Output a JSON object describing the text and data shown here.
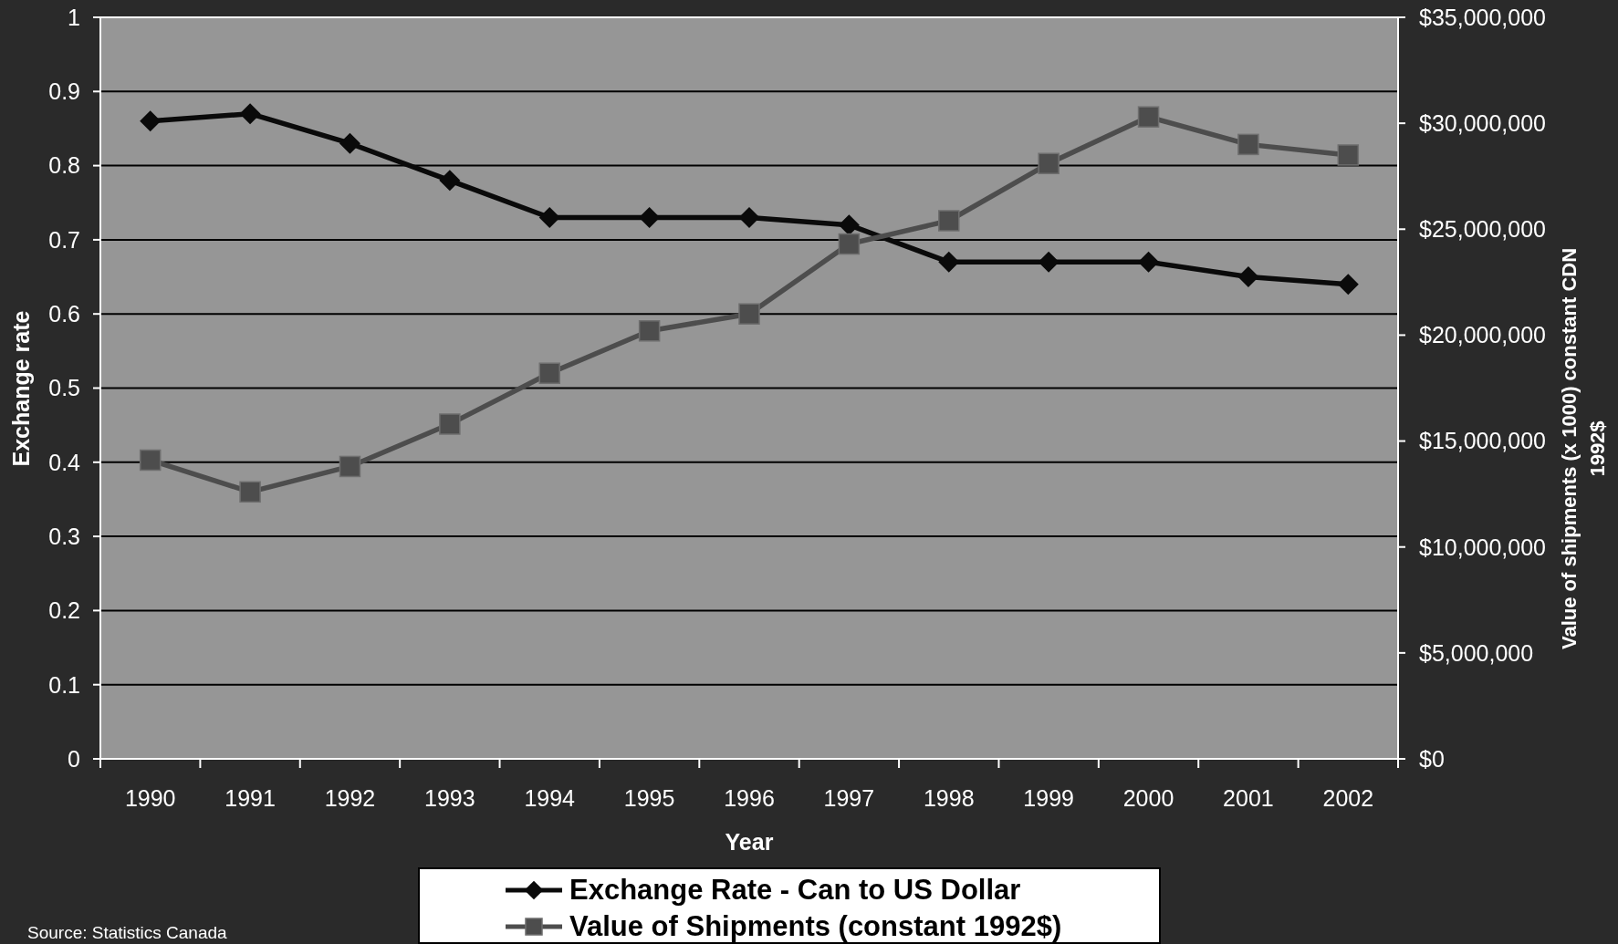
{
  "chart_data": {
    "type": "line",
    "xlabel": "Year",
    "ylabel": "Exchange rate",
    "y2label": "Value of shipments (x 1000) constant CDN 1992$",
    "annotations": [
      "Source: Statistics Canada"
    ],
    "categories": [
      "1990",
      "1991",
      "1992",
      "1993",
      "1994",
      "1995",
      "1996",
      "1997",
      "1998",
      "1999",
      "2000",
      "2001",
      "2002"
    ],
    "series": [
      {
        "name": "Exchange Rate - Can to US Dollar",
        "color": "#0a0a0a",
        "marker": "diamond",
        "values": [
          0.86,
          0.87,
          0.83,
          0.78,
          0.73,
          0.73,
          0.73,
          0.72,
          0.67,
          0.67,
          0.67,
          0.65,
          0.64
        ]
      },
      {
        "name": "Value of Shipments (constant 1992$)",
        "color": "#4d4d4d",
        "marker": "square",
        "axis": "y2",
        "values": [
          14100000,
          12600000,
          13800000,
          15800000,
          18200000,
          20200000,
          21000000,
          24300000,
          25400000,
          28100000,
          30300000,
          29000000,
          28500000
        ]
      }
    ],
    "ylim": [
      0,
      1
    ],
    "yticks": [
      0,
      0.1,
      0.2,
      0.3,
      0.4,
      0.5,
      0.6,
      0.7,
      0.8,
      0.9,
      1
    ],
    "y2lim": [
      0,
      35000000
    ],
    "y2ticks": [
      {
        "value": 0,
        "label": "$0"
      },
      {
        "value": 5000000,
        "label": "$5,000,000"
      },
      {
        "value": 10000000,
        "label": "$10,000,000"
      },
      {
        "value": 15000000,
        "label": "$15,000,000"
      },
      {
        "value": 20000000,
        "label": "$20,000,000"
      },
      {
        "value": 25000000,
        "label": "$25,000,000"
      },
      {
        "value": 30000000,
        "label": "$30,000,000"
      },
      {
        "value": 35000000,
        "label": "$35,000,000"
      }
    ],
    "grid": "y",
    "legend": "bottom"
  }
}
